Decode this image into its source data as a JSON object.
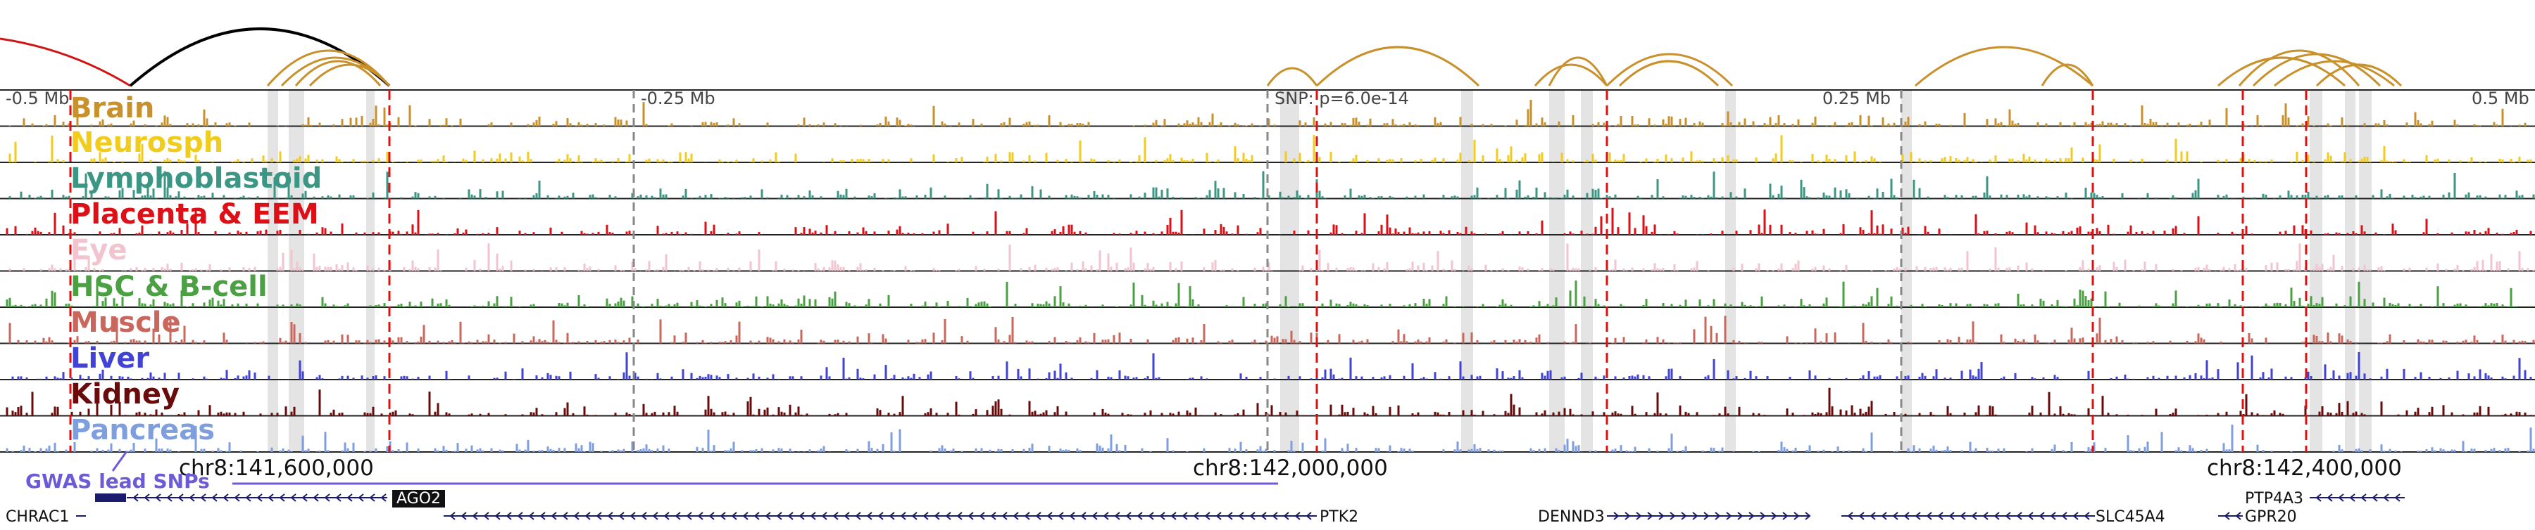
{
  "scale": {
    "left": "-0.5 Mb",
    "left_mid": "-0.25 Mb",
    "snp": "SNP: p=6.0e-14",
    "right_mid": "0.25 Mb",
    "right": "0.5 Mb"
  },
  "tracks": [
    {
      "name": "Brain",
      "color": "#c8912c"
    },
    {
      "name": "Neurosph",
      "color": "#f2cc1d"
    },
    {
      "name": "Lymphoblastoid",
      "color": "#3c9684"
    },
    {
      "name": "Placenta & EEM",
      "color": "#dd0f17"
    },
    {
      "name": "Eye",
      "color": "#f2c4cf"
    },
    {
      "name": "HSC & B-cell",
      "color": "#4aa043"
    },
    {
      "name": "Muscle",
      "color": "#c9675d"
    },
    {
      "name": "Liver",
      "color": "#4142d6"
    },
    {
      "name": "Kidney",
      "color": "#6a0b0b"
    },
    {
      "name": "Pancreas",
      "color": "#7f9ede"
    }
  ],
  "gwas": {
    "label": "GWAS lead SNPs",
    "color": "#6b5bd6"
  },
  "coordinates": [
    "chr8:141,600,000",
    "chr8:142,000,000",
    "chr8:142,400,000"
  ],
  "genes": [
    {
      "name": "CHRAC1",
      "strand": "+"
    },
    {
      "name": "AGO2",
      "strand": "-",
      "highlighted": true
    },
    {
      "name": "PTK2",
      "strand": "-"
    },
    {
      "name": "DENND3",
      "strand": "+"
    },
    {
      "name": "SLC45A4",
      "strand": "-"
    },
    {
      "name": "PTP4A3",
      "strand": "-"
    },
    {
      "name": "GPR20",
      "strand": "-"
    }
  ],
  "colors": {
    "loop": "#c8912c",
    "snp_line": "#e01010",
    "black_arc": "#000000",
    "red_arc": "#d01515",
    "highlight": "#d8d8d8"
  }
}
